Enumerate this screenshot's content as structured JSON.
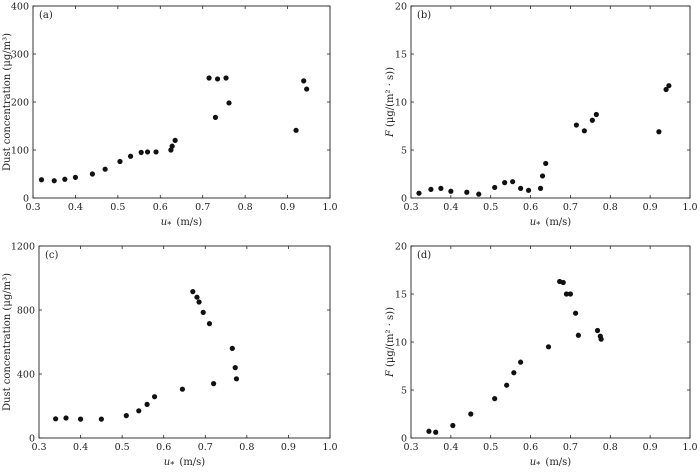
{
  "chart_data": [
    {
      "type": "scatter",
      "panel_label": "(a)",
      "xlabel_main": "u",
      "xlabel_sub": "*",
      "xlabel_unit": "(m/s)",
      "ylabel": "Dust concentration (μg/m³)",
      "xlim": [
        0.3,
        1.0
      ],
      "ylim": [
        0,
        400
      ],
      "xticks": [
        "0.3",
        "0.4",
        "0.5",
        "0.6",
        "0.7",
        "0.8",
        "0.9",
        "1.0"
      ],
      "yticks": [
        "0",
        "100",
        "200",
        "300",
        "400"
      ],
      "points": [
        {
          "x": 0.32,
          "y": 38
        },
        {
          "x": 0.35,
          "y": 36
        },
        {
          "x": 0.375,
          "y": 39
        },
        {
          "x": 0.4,
          "y": 43
        },
        {
          "x": 0.44,
          "y": 50
        },
        {
          "x": 0.47,
          "y": 60
        },
        {
          "x": 0.505,
          "y": 76
        },
        {
          "x": 0.53,
          "y": 87
        },
        {
          "x": 0.555,
          "y": 95
        },
        {
          "x": 0.57,
          "y": 96
        },
        {
          "x": 0.59,
          "y": 96
        },
        {
          "x": 0.625,
          "y": 100
        },
        {
          "x": 0.628,
          "y": 108
        },
        {
          "x": 0.635,
          "y": 120
        },
        {
          "x": 0.715,
          "y": 250
        },
        {
          "x": 0.73,
          "y": 168
        },
        {
          "x": 0.735,
          "y": 248
        },
        {
          "x": 0.755,
          "y": 250
        },
        {
          "x": 0.762,
          "y": 198
        },
        {
          "x": 0.92,
          "y": 141
        },
        {
          "x": 0.938,
          "y": 244
        },
        {
          "x": 0.945,
          "y": 227
        }
      ]
    },
    {
      "type": "scatter",
      "panel_label": "(b)",
      "xlabel_main": "u",
      "xlabel_sub": "*",
      "xlabel_unit": "(m/s)",
      "ylabel_main": "F",
      "ylabel_unit": "(μg/(m² · s))",
      "xlim": [
        0.3,
        1.0
      ],
      "ylim": [
        0,
        20
      ],
      "xticks": [
        "0.3",
        "0.4",
        "0.5",
        "0.6",
        "0.7",
        "0.8",
        "0.9",
        "1.0"
      ],
      "yticks": [
        "0",
        "5",
        "10",
        "15",
        "20"
      ],
      "points": [
        {
          "x": 0.32,
          "y": 0.5
        },
        {
          "x": 0.35,
          "y": 0.9
        },
        {
          "x": 0.375,
          "y": 1.0
        },
        {
          "x": 0.4,
          "y": 0.7
        },
        {
          "x": 0.44,
          "y": 0.6
        },
        {
          "x": 0.47,
          "y": 0.4
        },
        {
          "x": 0.51,
          "y": 1.1
        },
        {
          "x": 0.535,
          "y": 1.6
        },
        {
          "x": 0.555,
          "y": 1.7
        },
        {
          "x": 0.575,
          "y": 1.0
        },
        {
          "x": 0.595,
          "y": 0.8
        },
        {
          "x": 0.625,
          "y": 1.0
        },
        {
          "x": 0.63,
          "y": 2.3
        },
        {
          "x": 0.638,
          "y": 3.6
        },
        {
          "x": 0.715,
          "y": 7.6
        },
        {
          "x": 0.735,
          "y": 7.0
        },
        {
          "x": 0.755,
          "y": 8.1
        },
        {
          "x": 0.765,
          "y": 8.7
        },
        {
          "x": 0.922,
          "y": 6.9
        },
        {
          "x": 0.94,
          "y": 11.3
        },
        {
          "x": 0.947,
          "y": 11.7
        }
      ]
    },
    {
      "type": "scatter",
      "panel_label": "(c)",
      "xlabel_main": "u",
      "xlabel_sub": "*",
      "xlabel_unit": "(m/s)",
      "ylabel": "Dust concentration (μg/m³)",
      "xlim": [
        0.3,
        1.0
      ],
      "ylim": [
        0,
        1200
      ],
      "xticks": [
        "0.3",
        "0.4",
        "0.5",
        "0.6",
        "0.7",
        "0.8",
        "0.9",
        "1.0"
      ],
      "yticks": [
        "0",
        "400",
        "800",
        "1200"
      ],
      "points": [
        {
          "x": 0.34,
          "y": 120
        },
        {
          "x": 0.365,
          "y": 125
        },
        {
          "x": 0.4,
          "y": 118
        },
        {
          "x": 0.45,
          "y": 118
        },
        {
          "x": 0.51,
          "y": 140
        },
        {
          "x": 0.54,
          "y": 170
        },
        {
          "x": 0.56,
          "y": 210
        },
        {
          "x": 0.578,
          "y": 258
        },
        {
          "x": 0.645,
          "y": 305
        },
        {
          "x": 0.67,
          "y": 915
        },
        {
          "x": 0.68,
          "y": 880
        },
        {
          "x": 0.685,
          "y": 850
        },
        {
          "x": 0.695,
          "y": 785
        },
        {
          "x": 0.71,
          "y": 715
        },
        {
          "x": 0.72,
          "y": 340
        },
        {
          "x": 0.765,
          "y": 560
        },
        {
          "x": 0.772,
          "y": 440
        },
        {
          "x": 0.775,
          "y": 370
        }
      ]
    },
    {
      "type": "scatter",
      "panel_label": "(d)",
      "xlabel_main": "u",
      "xlabel_sub": "*",
      "xlabel_unit": "(m/s)",
      "ylabel_main": "F",
      "ylabel_unit": "(μg/(m² · s))",
      "xlim": [
        0.3,
        1.0
      ],
      "ylim": [
        0,
        20
      ],
      "xticks": [
        "0.3",
        "0.4",
        "0.5",
        "0.6",
        "0.7",
        "0.8",
        "0.9",
        "1.0"
      ],
      "yticks": [
        "0",
        "5",
        "10",
        "15",
        "20"
      ],
      "points": [
        {
          "x": 0.345,
          "y": 0.7
        },
        {
          "x": 0.362,
          "y": 0.6
        },
        {
          "x": 0.405,
          "y": 1.3
        },
        {
          "x": 0.45,
          "y": 2.5
        },
        {
          "x": 0.51,
          "y": 4.1
        },
        {
          "x": 0.54,
          "y": 5.5
        },
        {
          "x": 0.558,
          "y": 6.8
        },
        {
          "x": 0.575,
          "y": 7.9
        },
        {
          "x": 0.645,
          "y": 9.5
        },
        {
          "x": 0.673,
          "y": 16.3
        },
        {
          "x": 0.682,
          "y": 16.2
        },
        {
          "x": 0.69,
          "y": 15.0
        },
        {
          "x": 0.7,
          "y": 15.0
        },
        {
          "x": 0.713,
          "y": 13.0
        },
        {
          "x": 0.72,
          "y": 10.7
        },
        {
          "x": 0.768,
          "y": 11.2
        },
        {
          "x": 0.775,
          "y": 10.6
        },
        {
          "x": 0.777,
          "y": 10.3
        }
      ]
    }
  ]
}
